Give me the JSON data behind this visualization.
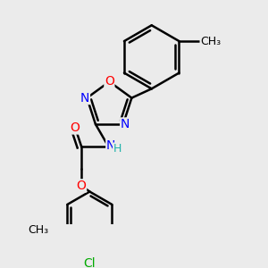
{
  "background_color": "#ebebeb",
  "atom_colors": {
    "C": "#000000",
    "N": "#0000ff",
    "O": "#ff0000",
    "Cl": "#00aa00",
    "H": "#20b2aa"
  },
  "bond_color": "#000000",
  "bond_width": 1.8,
  "font_size": 10,
  "fig_size": [
    3.0,
    3.0
  ],
  "dpi": 100,
  "bg": "#ebebeb"
}
